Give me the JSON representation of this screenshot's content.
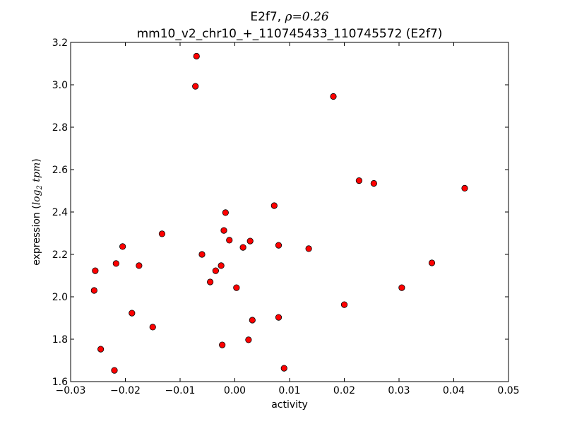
{
  "chart_data": {
    "type": "scatter",
    "title": {
      "gene": "E2f7",
      "rho_symbol": "ρ",
      "rho_value": "0.26",
      "subtitle": "mm10_v2_chr10_+_110745433_110745572 (E2f7)"
    },
    "xlabel": "activity",
    "ylabel": {
      "text": "expression",
      "log_base": "2",
      "unit": "tpm"
    },
    "xlim": [
      -0.03,
      0.05
    ],
    "ylim": [
      1.6,
      3.2
    ],
    "xticks": [
      -0.03,
      -0.02,
      -0.01,
      0.0,
      0.01,
      0.02,
      0.03,
      0.04,
      0.05
    ],
    "xtick_labels": [
      "−0.03",
      "−0.02",
      "−0.01",
      "0.00",
      "0.01",
      "0.02",
      "0.03",
      "0.04",
      "0.05"
    ],
    "yticks": [
      1.6,
      1.8,
      2.0,
      2.2,
      2.4,
      2.6,
      2.8,
      3.0,
      3.2
    ],
    "ytick_labels": [
      "1.6",
      "1.8",
      "2.0",
      "2.2",
      "2.4",
      "2.6",
      "2.8",
      "3.0",
      "3.2"
    ],
    "grid": false,
    "marker_color": "#ff0000",
    "marker_edge_color": "#000000",
    "points": [
      {
        "x": -0.007,
        "y": 3.135
      },
      {
        "x": -0.0072,
        "y": 2.993
      },
      {
        "x": 0.018,
        "y": 2.945
      },
      {
        "x": 0.0227,
        "y": 2.548
      },
      {
        "x": 0.0254,
        "y": 2.535
      },
      {
        "x": 0.042,
        "y": 2.512
      },
      {
        "x": 0.0072,
        "y": 2.43
      },
      {
        "x": -0.0017,
        "y": 2.397
      },
      {
        "x": -0.002,
        "y": 2.313
      },
      {
        "x": -0.0133,
        "y": 2.297
      },
      {
        "x": -0.001,
        "y": 2.267
      },
      {
        "x": 0.0028,
        "y": 2.263
      },
      {
        "x": 0.008,
        "y": 2.243
      },
      {
        "x": -0.0205,
        "y": 2.237
      },
      {
        "x": 0.0015,
        "y": 2.233
      },
      {
        "x": 0.0135,
        "y": 2.227
      },
      {
        "x": -0.006,
        "y": 2.2
      },
      {
        "x": -0.0217,
        "y": 2.157
      },
      {
        "x": 0.036,
        "y": 2.16
      },
      {
        "x": -0.0175,
        "y": 2.147
      },
      {
        "x": -0.0025,
        "y": 2.147
      },
      {
        "x": -0.0255,
        "y": 2.123
      },
      {
        "x": -0.0035,
        "y": 2.123
      },
      {
        "x": -0.0045,
        "y": 2.07
      },
      {
        "x": 0.0003,
        "y": 2.043
      },
      {
        "x": 0.0305,
        "y": 2.043
      },
      {
        "x": -0.0257,
        "y": 2.03
      },
      {
        "x": 0.02,
        "y": 1.963
      },
      {
        "x": -0.0188,
        "y": 1.923
      },
      {
        "x": 0.008,
        "y": 1.903
      },
      {
        "x": 0.0032,
        "y": 1.89
      },
      {
        "x": -0.015,
        "y": 1.857
      },
      {
        "x": 0.0025,
        "y": 1.797
      },
      {
        "x": -0.0023,
        "y": 1.773
      },
      {
        "x": -0.0245,
        "y": 1.753
      },
      {
        "x": 0.009,
        "y": 1.663
      },
      {
        "x": -0.022,
        "y": 1.653
      }
    ]
  }
}
